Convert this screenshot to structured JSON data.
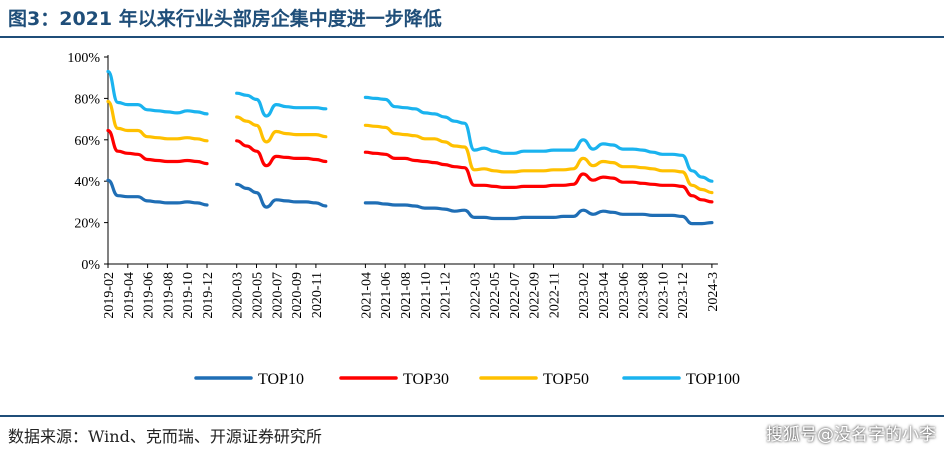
{
  "figure": {
    "title": "图3：2021 年以来行业头部房企集中度进一步降低",
    "source": "数据来源：Wind、克而瑞、开源证券研究所",
    "watermark": "搜狐号@没名字的小李"
  },
  "chart_data": {
    "type": "line",
    "title": "",
    "xlabel": "",
    "ylabel": "",
    "ylim": [
      0,
      100
    ],
    "yticks": [
      "0%",
      "20%",
      "40%",
      "60%",
      "80%",
      "100%"
    ],
    "grid": false,
    "legend_position": "bottom",
    "x_tick_labels": [
      "2019-02",
      "2019-04",
      "2019-06",
      "2019-08",
      "2019-10",
      "2019-12",
      "2020-03",
      "2020-05",
      "2020-07",
      "2020-09",
      "2020-11",
      "2021-04",
      "2021-06",
      "2021-08",
      "2021-10",
      "2021-12",
      "2022-03",
      "2022-05",
      "2022-07",
      "2022-09",
      "2022-11",
      "2023-02",
      "2023-04",
      "2023-06",
      "2023-08",
      "2023-10",
      "2023-12",
      "2024-3"
    ],
    "segments": [
      {
        "x": [
          "2019-02",
          "2019-03",
          "2019-04",
          "2019-05",
          "2019-06",
          "2019-07",
          "2019-08",
          "2019-09",
          "2019-10",
          "2019-11",
          "2019-12"
        ]
      },
      {
        "x": [
          "2020-03",
          "2020-04",
          "2020-05",
          "2020-06",
          "2020-07",
          "2020-08",
          "2020-09",
          "2020-10",
          "2020-11",
          "2020-12"
        ]
      },
      {
        "x": [
          "2021-04",
          "2021-05",
          "2021-06",
          "2021-07",
          "2021-08",
          "2021-09",
          "2021-10",
          "2021-11",
          "2021-12",
          "2022-01",
          "2022-02",
          "2022-03",
          "2022-04",
          "2022-05",
          "2022-06",
          "2022-07",
          "2022-08",
          "2022-09",
          "2022-10",
          "2022-11",
          "2022-12",
          "2023-01",
          "2023-02",
          "2023-03",
          "2023-04",
          "2023-05",
          "2023-06",
          "2023-07",
          "2023-08",
          "2023-09",
          "2023-10",
          "2023-11",
          "2023-12",
          "2024-01",
          "2024-02",
          "2024-03"
        ]
      }
    ],
    "series": [
      {
        "name": "TOP10",
        "color": "#1f6eb5",
        "values": [
          [
            40.5,
            33,
            32.5,
            32.5,
            30.5,
            30,
            29.5,
            29.5,
            30,
            29.5,
            28.5
          ],
          [
            38.5,
            36.5,
            34.5,
            27.5,
            31,
            30.5,
            30,
            30,
            29.5,
            28
          ],
          [
            29.5,
            29.5,
            29,
            28.5,
            28.5,
            28,
            27,
            27,
            26.5,
            25.5,
            26,
            22.5,
            22.5,
            22,
            22,
            22,
            22.5,
            22.5,
            22.5,
            22.5,
            23,
            23,
            26,
            24,
            25.5,
            25,
            24,
            24,
            24,
            23.5,
            23.5,
            23.5,
            23,
            19.5,
            19.5,
            20
          ]
        ]
      },
      {
        "name": "TOP30",
        "color": "#ff0000",
        "values": [
          [
            64.5,
            54.5,
            53.5,
            53,
            50.5,
            50,
            49.5,
            49.5,
            50,
            49.5,
            48.5
          ],
          [
            59.5,
            57,
            54.5,
            47.5,
            52,
            51.5,
            51,
            51,
            50.5,
            49.5
          ],
          [
            54,
            53.5,
            53,
            51,
            51,
            50,
            49.5,
            49,
            48,
            47,
            46.5,
            38,
            38,
            37.5,
            37,
            37,
            37.5,
            37.5,
            37.5,
            38,
            38,
            38.5,
            43.5,
            40.5,
            42,
            41.5,
            39.5,
            39.5,
            39,
            38.5,
            38,
            38,
            37.5,
            33,
            31,
            30
          ]
        ]
      },
      {
        "name": "TOP50",
        "color": "#ffc000",
        "values": [
          [
            78.5,
            65.5,
            64.5,
            64.5,
            61.5,
            61,
            60.5,
            60.5,
            61,
            60.5,
            59.5
          ],
          [
            71,
            69,
            67,
            59,
            64,
            63,
            62.5,
            62.5,
            62.5,
            61.5
          ],
          [
            67,
            66.5,
            66,
            63,
            62.5,
            62,
            60.5,
            60.5,
            59,
            57,
            56.5,
            45.5,
            46,
            45,
            44.5,
            44.5,
            45,
            45,
            45,
            45.5,
            45.5,
            46,
            51,
            47.5,
            49.5,
            49,
            47,
            47,
            46.5,
            46,
            45,
            45,
            44.5,
            38,
            36,
            34.5
          ]
        ]
      },
      {
        "name": "TOP100",
        "color": "#1ab3ef",
        "values": [
          [
            93,
            78,
            77,
            77,
            74.5,
            74,
            73.5,
            73,
            74,
            73.5,
            72.5
          ],
          [
            82.5,
            81.5,
            79.5,
            71.5,
            77,
            76,
            75.5,
            75.5,
            75.5,
            75
          ],
          [
            80.5,
            80,
            79.5,
            76,
            75.5,
            75,
            73,
            72.5,
            71,
            69,
            68,
            55,
            56,
            54.5,
            53.5,
            53.5,
            54.5,
            54.5,
            54.5,
            55,
            55,
            55,
            60,
            55.5,
            58,
            57.5,
            55.5,
            55.5,
            55,
            54,
            53,
            53,
            52.5,
            45,
            42,
            40
          ]
        ]
      }
    ]
  }
}
